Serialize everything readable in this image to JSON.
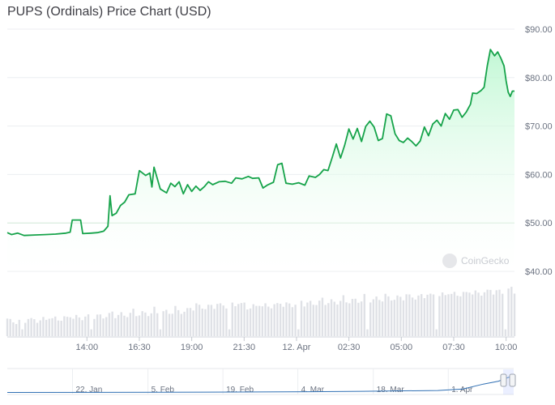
{
  "header": {
    "title": "PUPS (Ordinals) Price Chart (USD)"
  },
  "watermark": "CoinGecko",
  "colors": {
    "line": "#16a34a",
    "fill_top": "#bbf7d0",
    "volume": "#dfe1e6",
    "grid": "#eceef1",
    "baseline": "#cfe7d6",
    "navigator": "#2f6fb3"
  },
  "chart_data": {
    "type": "area",
    "title": "PUPS (Ordinals) Price Chart (USD)",
    "ylim": [
      40,
      90
    ],
    "yticks": [
      "$90.00",
      "$80.00",
      "$70.00",
      "$60.00",
      "$50.00",
      "$40.00"
    ],
    "ytick_values": [
      90,
      80,
      70,
      60,
      50,
      40
    ],
    "xticks": [
      "14:00",
      "16:30",
      "19:00",
      "21:30",
      "12. Apr",
      "02:30",
      "05:00",
      "07:30",
      "10:00"
    ],
    "xtick_pos": [
      3,
      5.5,
      8,
      10.5,
      13,
      15.5,
      18,
      20.5,
      23
    ],
    "xlim": [
      -0.8,
      23.4
    ],
    "price": [
      [
        -0.8,
        48.0
      ],
      [
        -0.6,
        47.6
      ],
      [
        -0.3,
        47.9
      ],
      [
        0.0,
        47.4
      ],
      [
        0.5,
        47.5
      ],
      [
        1.0,
        47.6
      ],
      [
        1.5,
        47.7
      ],
      [
        2.0,
        47.9
      ],
      [
        2.2,
        48.1
      ],
      [
        2.3,
        50.6
      ],
      [
        2.7,
        50.6
      ],
      [
        2.8,
        47.8
      ],
      [
        3.2,
        47.9
      ],
      [
        3.5,
        48.0
      ],
      [
        3.8,
        48.3
      ],
      [
        4.0,
        49.3
      ],
      [
        4.1,
        55.6
      ],
      [
        4.2,
        51.5
      ],
      [
        4.4,
        52.0
      ],
      [
        4.6,
        53.6
      ],
      [
        4.8,
        54.3
      ],
      [
        5.0,
        55.8
      ],
      [
        5.3,
        56.0
      ],
      [
        5.5,
        60.8
      ],
      [
        5.8,
        59.8
      ],
      [
        6.0,
        60.3
      ],
      [
        6.1,
        57.4
      ],
      [
        6.2,
        61.5
      ],
      [
        6.5,
        57.0
      ],
      [
        6.8,
        56.2
      ],
      [
        7.0,
        58.2
      ],
      [
        7.2,
        57.5
      ],
      [
        7.4,
        58.5
      ],
      [
        7.6,
        56.0
      ],
      [
        7.8,
        57.9
      ],
      [
        8.0,
        56.5
      ],
      [
        8.2,
        57.6
      ],
      [
        8.4,
        56.7
      ],
      [
        8.6,
        57.5
      ],
      [
        8.8,
        58.5
      ],
      [
        9.0,
        57.9
      ],
      [
        9.3,
        58.5
      ],
      [
        9.6,
        58.6
      ],
      [
        9.9,
        58.2
      ],
      [
        10.1,
        59.3
      ],
      [
        10.4,
        59.1
      ],
      [
        10.7,
        59.6
      ],
      [
        10.9,
        59.2
      ],
      [
        11.2,
        59.3
      ],
      [
        11.4,
        57.2
      ],
      [
        11.6,
        57.8
      ],
      [
        11.9,
        58.4
      ],
      [
        12.1,
        62.0
      ],
      [
        12.3,
        62.3
      ],
      [
        12.5,
        58.2
      ],
      [
        12.8,
        58.0
      ],
      [
        13.1,
        58.3
      ],
      [
        13.4,
        57.8
      ],
      [
        13.6,
        59.7
      ],
      [
        13.9,
        59.4
      ],
      [
        14.1,
        60.0
      ],
      [
        14.3,
        61.0
      ],
      [
        14.5,
        60.8
      ],
      [
        14.7,
        63.5
      ],
      [
        14.9,
        66.3
      ],
      [
        15.1,
        63.4
      ],
      [
        15.3,
        66.1
      ],
      [
        15.5,
        69.4
      ],
      [
        15.7,
        67.3
      ],
      [
        15.9,
        69.5
      ],
      [
        16.1,
        66.8
      ],
      [
        16.3,
        69.9
      ],
      [
        16.5,
        71.0
      ],
      [
        16.7,
        69.8
      ],
      [
        16.9,
        67.0
      ],
      [
        17.1,
        67.4
      ],
      [
        17.3,
        72.5
      ],
      [
        17.5,
        72.1
      ],
      [
        17.7,
        68.4
      ],
      [
        17.9,
        67.0
      ],
      [
        18.1,
        66.6
      ],
      [
        18.3,
        67.5
      ],
      [
        18.5,
        66.8
      ],
      [
        18.7,
        65.9
      ],
      [
        18.9,
        66.9
      ],
      [
        19.1,
        69.8
      ],
      [
        19.3,
        68.0
      ],
      [
        19.5,
        70.4
      ],
      [
        19.7,
        71.2
      ],
      [
        19.9,
        70.0
      ],
      [
        20.1,
        72.6
      ],
      [
        20.3,
        71.4
      ],
      [
        20.5,
        73.3
      ],
      [
        20.7,
        73.4
      ],
      [
        20.9,
        71.8
      ],
      [
        21.1,
        72.9
      ],
      [
        21.3,
        74.5
      ],
      [
        21.4,
        76.8
      ],
      [
        21.6,
        76.7
      ],
      [
        21.8,
        77.3
      ],
      [
        21.95,
        78.0
      ],
      [
        22.1,
        82.4
      ],
      [
        22.25,
        85.8
      ],
      [
        22.45,
        84.5
      ],
      [
        22.6,
        85.3
      ],
      [
        22.75,
        84.0
      ],
      [
        22.9,
        82.4
      ],
      [
        23.0,
        79.3
      ],
      [
        23.1,
        77.0
      ],
      [
        23.2,
        76.1
      ],
      [
        23.3,
        77.2
      ],
      [
        23.4,
        77.2
      ]
    ]
  },
  "navigator": {
    "labels": [
      "22. Jan",
      "5. Feb",
      "19. Feb",
      "4. Mar",
      "18. Mar",
      "1. Apr"
    ],
    "label_pos": [
      0.148,
      0.297,
      0.445,
      0.593,
      0.742,
      0.89
    ],
    "trend": [
      [
        0,
        0.02
      ],
      [
        0.3,
        0.03
      ],
      [
        0.55,
        0.05
      ],
      [
        0.7,
        0.08
      ],
      [
        0.85,
        0.12
      ],
      [
        0.9,
        0.2
      ],
      [
        0.94,
        0.45
      ],
      [
        0.97,
        0.6
      ],
      [
        1,
        0.9
      ]
    ]
  }
}
